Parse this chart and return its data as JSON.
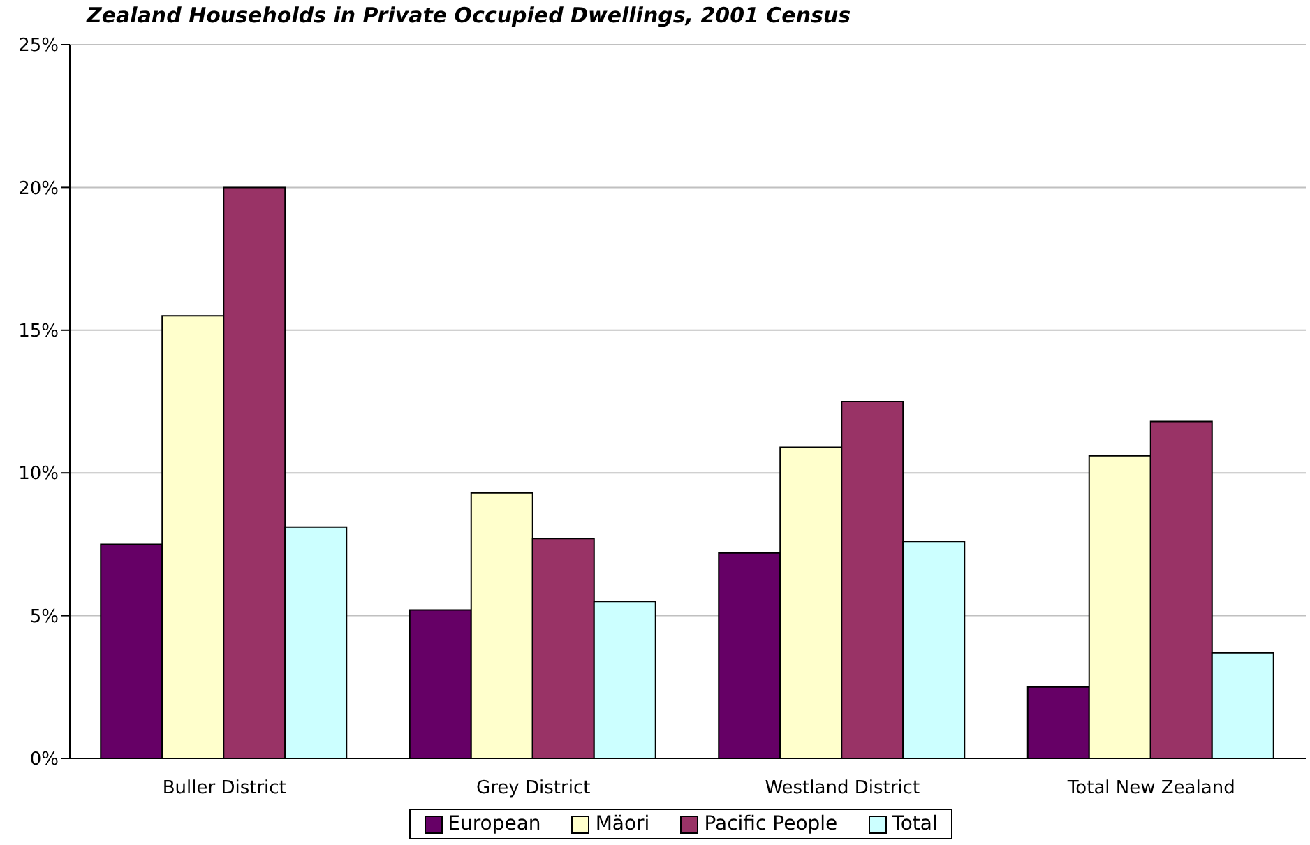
{
  "chart_data": {
    "type": "bar",
    "title": "Zealand Households in Private Occupied Dwellings, 2001 Census",
    "categories": [
      "Buller District",
      "Grey District",
      "Westland District",
      "Total New Zealand"
    ],
    "series": [
      {
        "name": "European",
        "color": "#660066",
        "values": [
          7.5,
          5.2,
          7.2,
          2.5
        ]
      },
      {
        "name": "Mäori",
        "color": "#ffffcc",
        "values": [
          15.5,
          9.3,
          10.9,
          10.6
        ]
      },
      {
        "name": "Pacific People",
        "color": "#993366",
        "values": [
          20.0,
          7.7,
          12.5,
          11.8
        ]
      },
      {
        "name": "Total",
        "color": "#ccffff",
        "values": [
          8.1,
          5.5,
          7.6,
          3.7
        ]
      }
    ],
    "ylim": [
      0,
      25
    ],
    "yticks": [
      {
        "value": 0,
        "label": "0%"
      },
      {
        "value": 5,
        "label": "5%"
      },
      {
        "value": 10,
        "label": "10%"
      },
      {
        "value": 15,
        "label": "15%"
      },
      {
        "value": 20,
        "label": "20%"
      },
      {
        "value": 25,
        "label": "25%"
      }
    ],
    "grid": "y",
    "legend": "bottom"
  }
}
